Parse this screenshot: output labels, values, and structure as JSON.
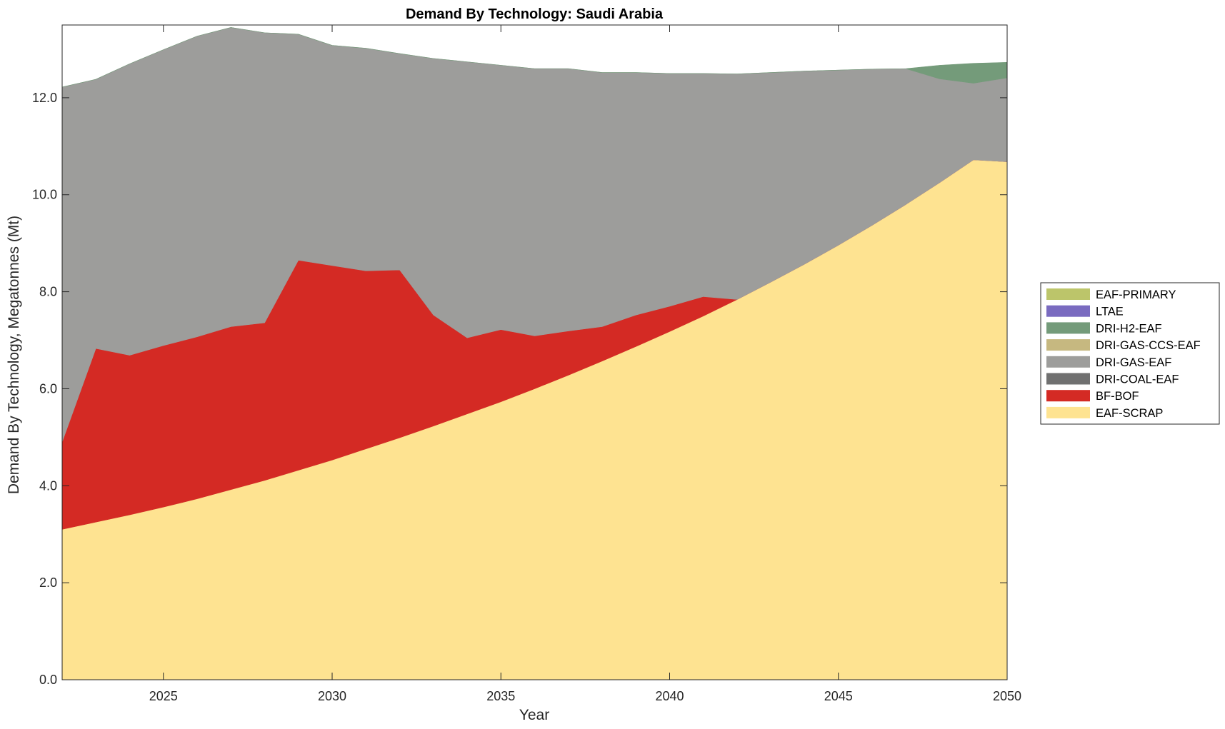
{
  "chart_data": {
    "type": "area",
    "stacked": true,
    "title": "Demand By Technology: Saudi Arabia",
    "xlabel": "Year",
    "ylabel": "Demand By Technology, Megatonnes (Mt)",
    "xlim": [
      2022,
      2050
    ],
    "ylim": [
      0,
      13.5
    ],
    "xticks": [
      2025,
      2030,
      2035,
      2040,
      2045,
      2050
    ],
    "yticks": [
      0,
      2,
      4,
      6,
      8,
      10,
      12
    ],
    "ytick_labels": [
      "0.0",
      "2.0",
      "4.0",
      "6.0",
      "8.0",
      "10.0",
      "12.0"
    ],
    "grid": false,
    "legend_position": "right",
    "x": [
      2022,
      2023,
      2024,
      2025,
      2026,
      2027,
      2028,
      2029,
      2030,
      2031,
      2032,
      2033,
      2034,
      2035,
      2036,
      2037,
      2038,
      2039,
      2040,
      2041,
      2042,
      2043,
      2044,
      2045,
      2046,
      2047,
      2048,
      2049,
      2050
    ],
    "series": [
      {
        "name": "EAF-SCRAP",
        "color": "#FEE391",
        "values": [
          3.1,
          3.25,
          3.4,
          3.56,
          3.73,
          3.92,
          4.11,
          4.32,
          4.53,
          4.76,
          4.99,
          5.23,
          5.48,
          5.73,
          6.0,
          6.28,
          6.57,
          6.87,
          7.18,
          7.5,
          7.84,
          8.2,
          8.57,
          8.96,
          9.37,
          9.8,
          10.25,
          10.72,
          10.68
        ]
      },
      {
        "name": "BF-BOF",
        "color": "#D42A24",
        "values": [
          1.8,
          3.58,
          3.29,
          3.33,
          3.34,
          3.36,
          3.25,
          4.33,
          4.01,
          3.67,
          3.46,
          2.29,
          1.57,
          1.49,
          1.09,
          0.91,
          0.71,
          0.65,
          0.52,
          0.4,
          0.0,
          0.0,
          0.0,
          0.0,
          0.0,
          0.0,
          0.0,
          0.0,
          0.0
        ]
      },
      {
        "name": "DRI-COAL-EAF",
        "color": "#707070",
        "values": [
          0,
          0,
          0,
          0,
          0,
          0,
          0,
          0,
          0,
          0,
          0,
          0,
          0,
          0,
          0,
          0,
          0,
          0,
          0,
          0,
          0,
          0,
          0,
          0,
          0,
          0,
          0,
          0,
          0
        ]
      },
      {
        "name": "DRI-GAS-EAF",
        "color": "#9D9D9B",
        "values": [
          7.32,
          5.55,
          6.01,
          6.1,
          6.2,
          6.17,
          5.98,
          4.66,
          4.54,
          4.59,
          4.46,
          5.29,
          5.69,
          5.45,
          5.51,
          5.41,
          5.24,
          5.0,
          4.8,
          4.6,
          4.65,
          4.32,
          3.98,
          3.61,
          3.22,
          2.8,
          2.14,
          1.58,
          1.73
        ]
      },
      {
        "name": "DRI-GAS-CCS-EAF",
        "color": "#C6B880",
        "values": [
          0,
          0,
          0,
          0,
          0,
          0,
          0,
          0,
          0,
          0,
          0,
          0,
          0,
          0,
          0,
          0,
          0,
          0,
          0,
          0,
          0,
          0,
          0,
          0,
          0,
          0,
          0,
          0,
          0
        ]
      },
      {
        "name": "DRI-H2-EAF",
        "color": "#749B7A",
        "values": [
          0,
          0,
          0,
          0,
          0,
          0,
          0,
          0,
          0,
          0,
          0,
          0,
          0,
          0,
          0,
          0,
          0,
          0,
          0,
          0,
          0,
          0,
          0,
          0,
          0,
          0,
          0.28,
          0.41,
          0.32
        ]
      },
      {
        "name": "LTAE",
        "color": "#7A6BC0",
        "values": [
          0,
          0,
          0,
          0,
          0,
          0,
          0,
          0,
          0,
          0,
          0,
          0,
          0,
          0,
          0,
          0,
          0,
          0,
          0,
          0,
          0,
          0,
          0,
          0,
          0,
          0,
          0,
          0,
          0
        ]
      },
      {
        "name": "EAF-PRIMARY",
        "color": "#BCC56A",
        "values": [
          0,
          0,
          0,
          0,
          0,
          0,
          0,
          0,
          0,
          0,
          0,
          0,
          0,
          0,
          0,
          0,
          0,
          0,
          0,
          0,
          0,
          0,
          0,
          0,
          0,
          0,
          0,
          0,
          0
        ]
      }
    ],
    "legend_order": [
      "EAF-PRIMARY",
      "LTAE",
      "DRI-H2-EAF",
      "DRI-GAS-CCS-EAF",
      "DRI-GAS-EAF",
      "DRI-COAL-EAF",
      "BF-BOF",
      "EAF-SCRAP"
    ]
  }
}
